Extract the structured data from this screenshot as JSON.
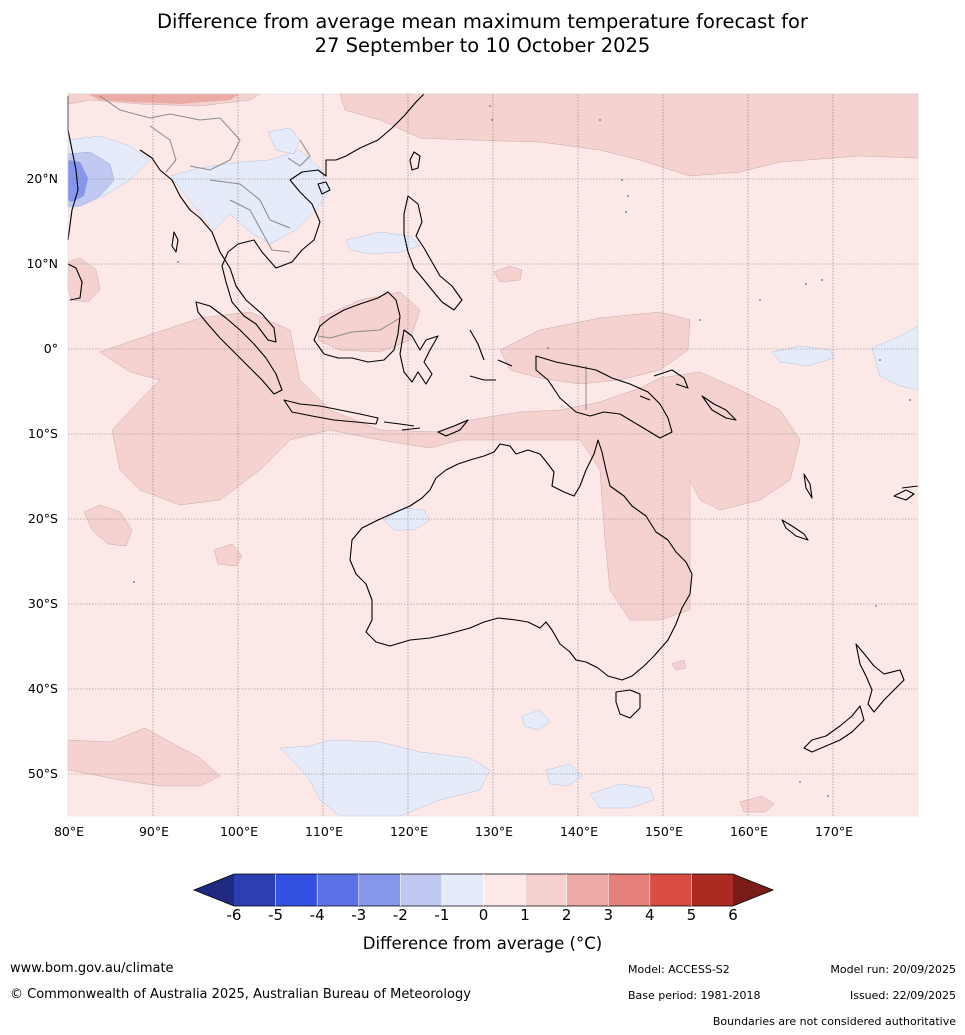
{
  "title": {
    "line1": "Difference from average mean maximum temperature forecast for",
    "line2": "27 September to 10 October 2025"
  },
  "map": {
    "latitude_labels": [
      "20°N",
      "10°N",
      "0°",
      "10°S",
      "20°S",
      "30°S",
      "40°S",
      "50°S"
    ],
    "longitude_labels": [
      "80°E",
      "90°E",
      "100°E",
      "110°E",
      "120°E",
      "130°E",
      "140°E",
      "150°E",
      "160°E",
      "170°E"
    ],
    "background_color": "#fce9e7"
  },
  "colorbar": {
    "ticks": [
      "-6",
      "-5",
      "-4",
      "-3",
      "-2",
      "-1",
      "0",
      "1",
      "2",
      "3",
      "4",
      "5",
      "6"
    ],
    "colors": [
      "#1f2a80",
      "#2b3fb3",
      "#3450e0",
      "#5a72e6",
      "#8596ec",
      "#c1c9f2",
      "#e6ebfa",
      "#fce9e7",
      "#f5d2d0",
      "#ecaaa5",
      "#e5807a",
      "#da4d42",
      "#ab2a22",
      "#7a1c17"
    ],
    "label": "Difference from average ($^\\circ$C)",
    "label_display": "Difference from average (°C)"
  },
  "footer": {
    "website": "www.bom.gov.au/climate",
    "copyright": "© Commonwealth of Australia 2025, Australian Bureau of Meteorology",
    "model": "Model: ACCESS-S2",
    "base_period": "Base period: 1981-2018",
    "model_run": "Model run: 20/09/2025",
    "issued": "Issued: 22/09/2025",
    "disclaimer": "Boundaries are not considered authoritative"
  }
}
